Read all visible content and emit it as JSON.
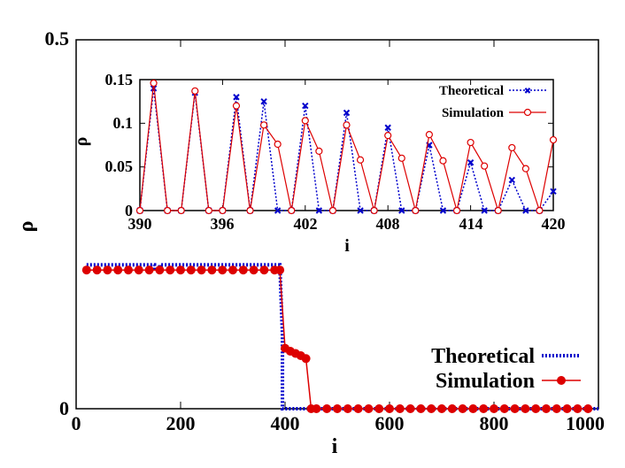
{
  "chart_data": [
    {
      "id": "main",
      "type": "line",
      "xlabel": "i",
      "ylabel": "ρ",
      "xlim": [
        0,
        1000
      ],
      "ylim": [
        0,
        0.5
      ],
      "xticks": [
        "0",
        "200",
        "400",
        "600",
        "800",
        "1000"
      ],
      "yticks": [
        "0",
        "0.5"
      ],
      "legend": [
        "Theoretical",
        "Simulation"
      ],
      "legend_position": "bottom-right",
      "series": [
        {
          "name": "Theoretical",
          "color": "#0000cc",
          "style": "dotted",
          "x": [
            20,
            150,
            150,
            160,
            160,
            390,
            395,
            395,
            1000
          ],
          "y": [
            0.195,
            0.195,
            0.188,
            0.188,
            0.195,
            0.195,
            0.1,
            0.0,
            0.0
          ]
        },
        {
          "name": "Simulation",
          "color": "#dd0000",
          "style": "line+markers",
          "x": [
            20,
            40,
            60,
            80,
            100,
            120,
            140,
            160,
            180,
            200,
            220,
            240,
            260,
            280,
            300,
            320,
            340,
            360,
            380,
            390,
            400,
            410,
            420,
            430,
            440,
            450,
            460,
            480,
            500,
            520,
            540,
            560,
            580,
            600,
            620,
            640,
            660,
            680,
            700,
            720,
            740,
            760,
            780,
            800,
            820,
            840,
            860,
            880,
            900,
            920,
            940,
            960,
            980
          ],
          "y": [
            0.188,
            0.188,
            0.188,
            0.188,
            0.188,
            0.188,
            0.188,
            0.188,
            0.188,
            0.188,
            0.188,
            0.188,
            0.188,
            0.188,
            0.188,
            0.188,
            0.188,
            0.188,
            0.188,
            0.188,
            0.082,
            0.078,
            0.075,
            0.072,
            0.068,
            0.0,
            0.0,
            0.0,
            0.0,
            0.0,
            0.0,
            0.0,
            0.0,
            0.0,
            0.0,
            0.0,
            0.0,
            0.0,
            0.0,
            0.0,
            0.0,
            0.0,
            0.0,
            0.0,
            0.0,
            0.0,
            0.0,
            0.0,
            0.0,
            0.0,
            0.0,
            0.0,
            0.0
          ]
        }
      ]
    },
    {
      "id": "inset",
      "type": "line",
      "xlabel": "i",
      "ylabel": "ρ",
      "xlim": [
        390,
        420
      ],
      "ylim": [
        0,
        0.15
      ],
      "xticks": [
        "390",
        "396",
        "402",
        "408",
        "414",
        "420"
      ],
      "yticks": [
        "0",
        "0.05",
        "0.1",
        "0.15"
      ],
      "legend": [
        "Theoretical",
        "Simulation"
      ],
      "legend_position": "top-right",
      "series": [
        {
          "name": "Theoretical",
          "color": "#0000cc",
          "style": "dotted+markers",
          "x": [
            390,
            391,
            392,
            393,
            394,
            395,
            396,
            397,
            398,
            399,
            400,
            401,
            402,
            403,
            404,
            405,
            406,
            407,
            408,
            409,
            410,
            411,
            412,
            413,
            414,
            415,
            416,
            417,
            418,
            419,
            420
          ],
          "y": [
            0.0,
            0.14,
            0.0,
            0.0,
            0.135,
            0.0,
            0.0,
            0.13,
            0.0,
            0.125,
            0.0,
            0.0,
            0.12,
            0.0,
            0.0,
            0.112,
            0.0,
            0.0,
            0.095,
            0.0,
            0.0,
            0.075,
            0.0,
            0.0,
            0.055,
            0.0,
            0.0,
            0.035,
            0.0,
            0.0,
            0.022
          ]
        },
        {
          "name": "Simulation",
          "color": "#dd0000",
          "style": "line+markers",
          "x": [
            390,
            391,
            392,
            393,
            394,
            395,
            396,
            397,
            398,
            399,
            400,
            401,
            402,
            403,
            404,
            405,
            406,
            407,
            408,
            409,
            410,
            411,
            412,
            413,
            414,
            415,
            416,
            417,
            418,
            419,
            420
          ],
          "y": [
            0.0,
            0.146,
            0.0,
            0.0,
            0.137,
            0.0,
            0.0,
            0.12,
            0.0,
            0.098,
            0.076,
            0.0,
            0.103,
            0.068,
            0.0,
            0.098,
            0.058,
            0.0,
            0.086,
            0.06,
            0.0,
            0.087,
            0.057,
            0.0,
            0.078,
            0.051,
            0.0,
            0.072,
            0.048,
            0.0,
            0.081
          ]
        }
      ]
    }
  ]
}
